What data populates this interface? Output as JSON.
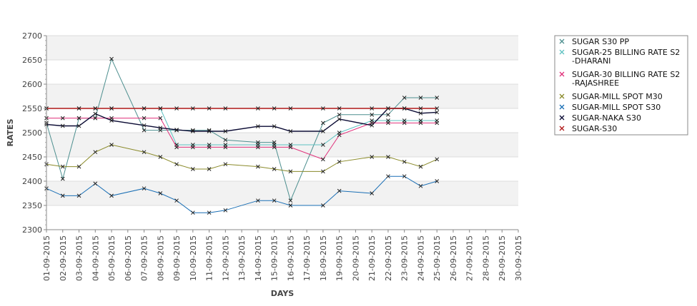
{
  "chart_data": {
    "type": "line",
    "title": "",
    "xlabel": "DAYS",
    "ylabel": "RATES",
    "ylim": [
      2300,
      2700
    ],
    "yticks": [
      2300,
      2350,
      2400,
      2450,
      2500,
      2550,
      2600,
      2650,
      2700
    ],
    "grid": "horizontal alternating bands",
    "legend_position": "right",
    "categories": [
      "01-09-2015",
      "02-09-2015",
      "03-09-2015",
      "04-09-2015",
      "05-09-2015",
      "06-09-2015",
      "07-09-2015",
      "08-09-2015",
      "09-09-2015",
      "10-09-2015",
      "11-09-2015",
      "12-09-2015",
      "13-09-2015",
      "14-09-2015",
      "15-09-2015",
      "16-09-2015",
      "17-09-2015",
      "18-09-2015",
      "19-09-2015",
      "20-09-2015",
      "21-09-2015",
      "22-09-2015",
      "23-09-2015",
      "24-09-2015",
      "25-09-2015",
      "26-09-2015",
      "27-09-2015",
      "28-09-2015",
      "29-09-2015",
      "30-09-2015"
    ],
    "series": [
      {
        "name": "SUGAR S30 PP",
        "color": "#4d8f8f",
        "values": [
          2520,
          2405,
          2530,
          2530,
          2652,
          null,
          2505,
          2505,
          2505,
          2505,
          2505,
          2485,
          null,
          2480,
          2480,
          2360,
          null,
          2520,
          2537,
          null,
          2537,
          2537,
          2572,
          2572,
          2572,
          null,
          null,
          null,
          null,
          null
        ]
      },
      {
        "name": "SUGAR-25 BILLING RATE S2\n-DHARANI",
        "color": "#5fc2c2",
        "values": [
          2550,
          null,
          2550,
          2550,
          2550,
          null,
          2550,
          2550,
          2475,
          2475,
          2475,
          2475,
          null,
          2475,
          2475,
          2475,
          null,
          2475,
          2500,
          null,
          2525,
          2525,
          2525,
          2525,
          2525,
          null,
          null,
          null,
          null,
          null
        ]
      },
      {
        "name": "SUGAR-30 BILLING RATE S2\n-RAJASHREE",
        "color": "#e0307a",
        "values": [
          2530,
          2530,
          2530,
          2530,
          2530,
          null,
          2530,
          2530,
          2470,
          2470,
          2470,
          2470,
          null,
          2470,
          2470,
          2470,
          null,
          2445,
          2495,
          null,
          2520,
          2520,
          2520,
          2520,
          2520,
          null,
          null,
          null,
          null,
          null
        ]
      },
      {
        "name": "SUGAR-MILL SPOT M30",
        "color": "#8a8a2a",
        "values": [
          2435,
          2430,
          2430,
          2460,
          2475,
          null,
          2460,
          2450,
          2435,
          2425,
          2425,
          2435,
          null,
          2430,
          2425,
          2420,
          null,
          2420,
          2440,
          null,
          2450,
          2450,
          2440,
          2430,
          2445,
          null,
          null,
          null,
          null,
          null
        ]
      },
      {
        "name": "SUGAR-MILL SPOT S30",
        "color": "#1a6fb5",
        "values": [
          2385,
          2370,
          2370,
          2395,
          2370,
          null,
          2385,
          2375,
          2360,
          2335,
          2335,
          2340,
          null,
          2360,
          2360,
          2350,
          null,
          2350,
          2380,
          null,
          2375,
          2410,
          2410,
          2390,
          2400,
          null,
          null,
          null,
          null,
          null
        ]
      },
      {
        "name": "SUGAR-NAKA S30",
        "color": "#0a0a33",
        "values": [
          2517,
          2514,
          2514,
          2539,
          2525,
          null,
          2515,
          2510,
          2506,
          2503,
          2503,
          2503,
          null,
          2513,
          2513,
          2503,
          null,
          2503,
          2528,
          null,
          2515,
          2550,
          2550,
          2540,
          2542,
          null,
          null,
          null,
          null,
          null
        ]
      },
      {
        "name": "SUGAR-S30",
        "color": "#b01818",
        "values": [
          2550,
          null,
          2550,
          2550,
          2550,
          null,
          2550,
          2550,
          2550,
          2550,
          2550,
          2550,
          null,
          2550,
          2550,
          2550,
          null,
          2550,
          2550,
          null,
          2550,
          2550,
          2550,
          2550,
          2550,
          null,
          null,
          null,
          null,
          null
        ]
      }
    ]
  }
}
